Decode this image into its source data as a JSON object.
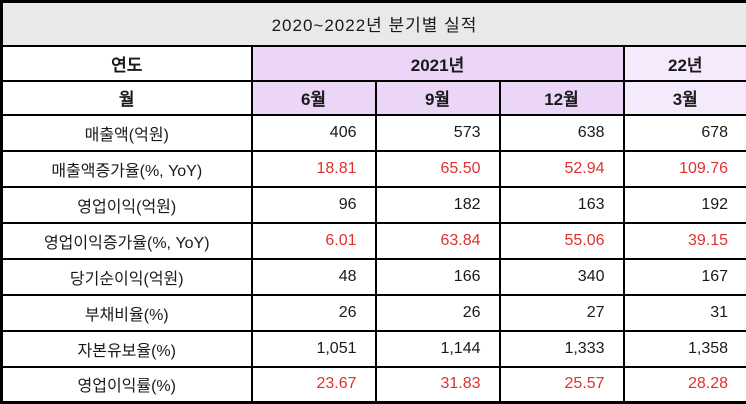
{
  "title": "2020~2022년 분기별 실적",
  "table": {
    "year_header": {
      "row_label": "연도",
      "year_group_2021": "2021년",
      "year_group_22": "22년"
    },
    "month_header": {
      "row_label": "월",
      "months": [
        "6월",
        "9월",
        "12월",
        "3월"
      ]
    },
    "rows": [
      {
        "label": "매출액(억원)",
        "values": [
          "406",
          "573",
          "638",
          "678"
        ],
        "highlight": false
      },
      {
        "label": "매출액증가율(%, YoY)",
        "values": [
          "18.81",
          "65.50",
          "52.94",
          "109.76"
        ],
        "highlight": true
      },
      {
        "label": "영업이익(억원)",
        "values": [
          "96",
          "182",
          "163",
          "192"
        ],
        "highlight": false
      },
      {
        "label": "영업이익증가율(%, YoY)",
        "values": [
          "6.01",
          "63.84",
          "55.06",
          "39.15"
        ],
        "highlight": true
      },
      {
        "label": "당기순이익(억원)",
        "values": [
          "48",
          "166",
          "340",
          "167"
        ],
        "highlight": false
      },
      {
        "label": "부채비율(%)",
        "values": [
          "26",
          "26",
          "27",
          "31"
        ],
        "highlight": false
      },
      {
        "label": "자본유보율(%)",
        "values": [
          "1,051",
          "1,144",
          "1,333",
          "1,358"
        ],
        "highlight": false
      },
      {
        "label": "영업이익률(%)",
        "values": [
          "23.67",
          "31.83",
          "25.57",
          "28.28"
        ],
        "highlight": true
      }
    ]
  },
  "colors": {
    "title_bg": "#e9e9e9",
    "header_purple_2021": "#ebd6f7",
    "header_purple_22": "#f5eafc",
    "highlight_red": "#e03131",
    "border_black": "#000000"
  }
}
